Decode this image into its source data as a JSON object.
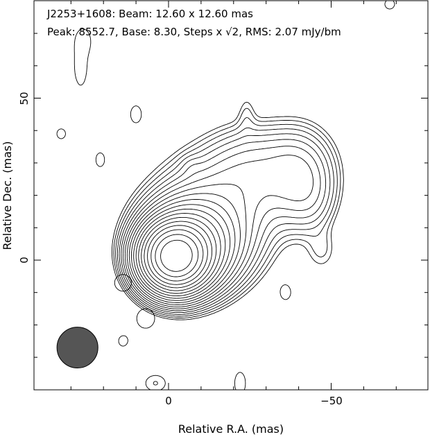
{
  "chart_data": {
    "type": "contour",
    "title_line1": "J2253+1608: Beam: 12.60 x 12.60 mas",
    "title_line2_pre": "Peak: 8552.7, Base: 8.30, Steps x ",
    "title_sqrt_symbol": "√2",
    "title_line2_post": ", RMS: 2.07 mJy/bm",
    "xlabel": "Relative R.A. (mas)",
    "ylabel": "Relative Dec. (mas)",
    "xlim": [
      40,
      -80
    ],
    "ylim": [
      -40,
      80
    ],
    "x_tick_labels": [
      "0",
      "−50"
    ],
    "y_tick_labels": [
      "0",
      "50"
    ],
    "beam": {
      "major_mas": 12.6,
      "minor_mas": 12.6,
      "x": 28,
      "y": -27
    },
    "peak_mJy_per_beam": 8552.7,
    "base_mJy_per_beam": 8.3,
    "step_factor": "sqrt(2)",
    "rms_mJy_per_beam": 2.07,
    "positive_levels": 20,
    "core": {
      "x": -2,
      "y": 1
    },
    "jet_knots": [
      {
        "x": -18,
        "y": 20
      },
      {
        "x": -40,
        "y": 25
      }
    ],
    "colors": {
      "contour": "#000000",
      "beam_fill": "#555555"
    }
  }
}
